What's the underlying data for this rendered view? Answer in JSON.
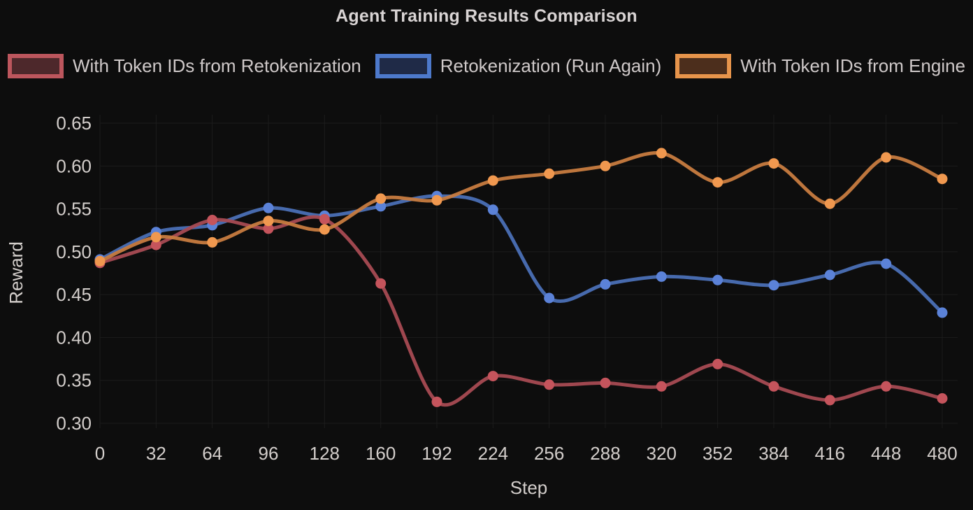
{
  "colors": {
    "background": "#0d0d0d",
    "grid": "#1c1c1c",
    "tick_text": "#d3cecb",
    "axis_title_text": "#d3cecb",
    "title_text": "#d9d4d4",
    "legend_text": "#cfc9c9"
  },
  "chart_data": {
    "type": "line",
    "title": "Agent Training Results Comparison",
    "xlabel": "Step",
    "ylabel": "Reward",
    "categories": [
      0,
      32,
      64,
      96,
      128,
      160,
      192,
      224,
      256,
      288,
      320,
      352,
      384,
      416,
      448,
      480
    ],
    "y_ticks": [
      0.3,
      0.35,
      0.4,
      0.45,
      0.5,
      0.55,
      0.6,
      0.65
    ],
    "ylim": [
      0.3,
      0.65
    ],
    "grid": true,
    "legend_position": "top",
    "curve_smoothing": true,
    "series": [
      {
        "name": "Retokenization (Run Again)",
        "point_color": "#5b82d8",
        "line_color": "#4b70b6",
        "legend_border": "#4d79cb",
        "legend_fill": "#1f2a47",
        "values": [
          0.491,
          0.523,
          0.531,
          0.551,
          0.542,
          0.553,
          0.565,
          0.549,
          0.446,
          0.462,
          0.471,
          0.467,
          0.461,
          0.473,
          0.486,
          0.429
        ]
      },
      {
        "name": "With Token IDs from Retokenization",
        "point_color": "#c5545c",
        "line_color": "#a84b53",
        "legend_border": "#bc565d",
        "legend_fill": "#4d282b",
        "values": [
          0.487,
          0.508,
          0.537,
          0.527,
          0.538,
          0.463,
          0.325,
          0.355,
          0.345,
          0.347,
          0.343,
          0.369,
          0.343,
          0.327,
          0.343,
          0.329
        ]
      },
      {
        "name": "With Token IDs from Engine",
        "point_color": "#f0984f",
        "line_color": "#c87c40",
        "legend_border": "#e6944b",
        "legend_fill": "#4c2e1c",
        "values": [
          0.489,
          0.517,
          0.511,
          0.536,
          0.526,
          0.562,
          0.56,
          0.583,
          0.591,
          0.6,
          0.615,
          0.581,
          0.603,
          0.556,
          0.61,
          0.585
        ]
      }
    ],
    "legend_display_order": [
      1,
      0,
      2
    ]
  }
}
